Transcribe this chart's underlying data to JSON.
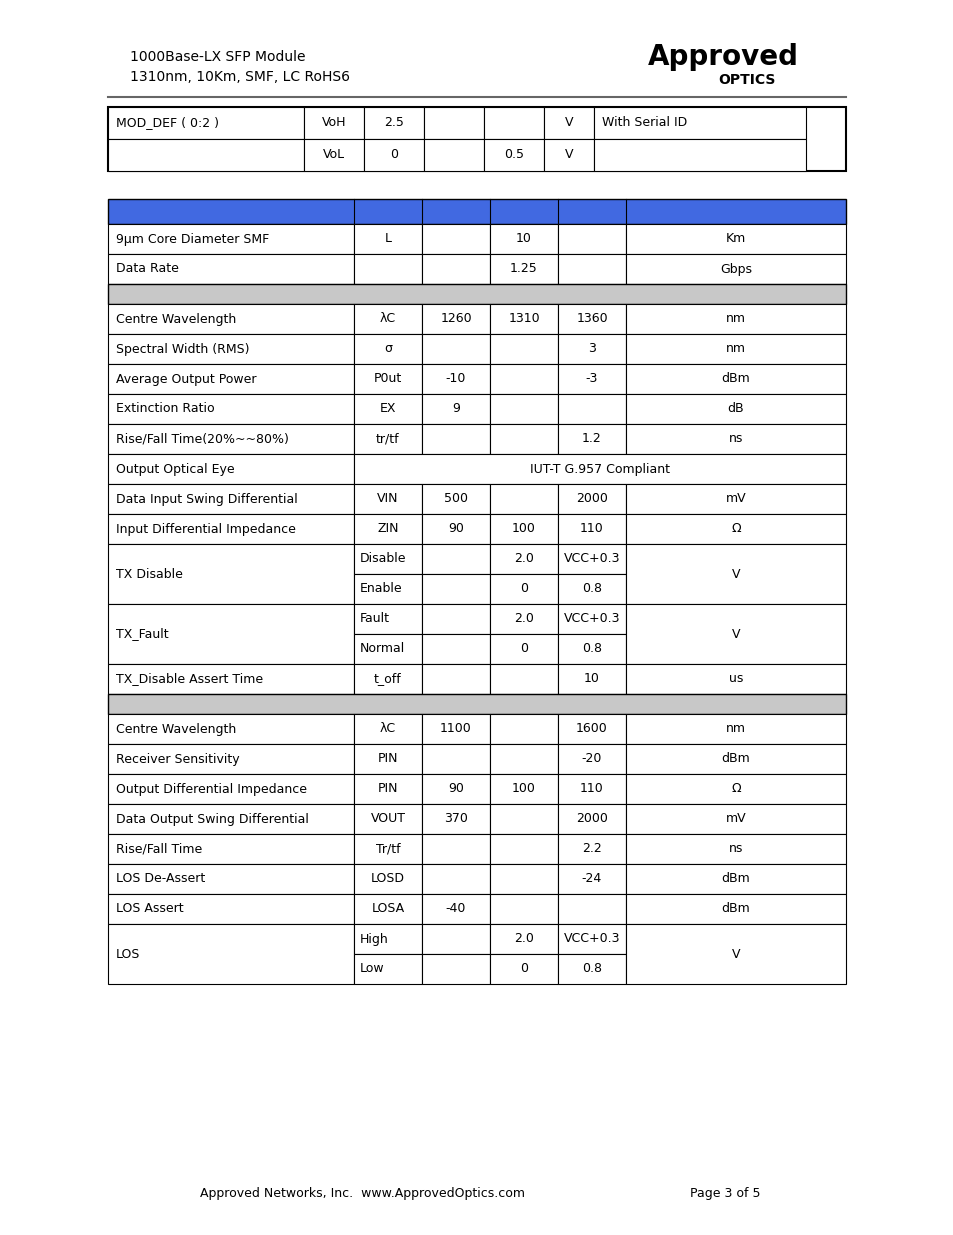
{
  "title_line1": "1000Base-LX SFP Module",
  "title_line2": "1310nm, 10Km, SMF, LC RoHS6",
  "footer": "Approved Networks, Inc.  www.ApprovedOptics.com",
  "footer_page": "Page 3 of 5",
  "blue_color": "#4169E1",
  "gray_color": "#C8C8C8",
  "bg_color": "#FFFFFF",
  "top_rows": [
    [
      "MOD_DEF ( 0:2 )",
      "VoH",
      "2.5",
      "",
      "",
      "V",
      "With Serial ID"
    ],
    [
      "",
      "VoL",
      "0",
      "",
      "0.5",
      "V",
      ""
    ]
  ],
  "section1_rows": [
    {
      "type": "data",
      "cells": [
        "9μm Core Diameter SMF",
        "L",
        "",
        "10",
        "",
        "Km"
      ]
    },
    {
      "type": "data",
      "cells": [
        "Data Rate",
        "",
        "",
        "1.25",
        "",
        "Gbps"
      ]
    }
  ],
  "section2_rows": [
    {
      "type": "data",
      "cells": [
        "Centre Wavelength",
        "λC",
        "1260",
        "1310",
        "1360",
        "nm"
      ]
    },
    {
      "type": "data",
      "cells": [
        "Spectral Width (RMS)",
        "σ",
        "",
        "",
        "3",
        "nm"
      ]
    },
    {
      "type": "data",
      "cells": [
        "Average Output Power",
        "P0ut",
        "-10",
        "",
        "-3",
        "dBm"
      ]
    },
    {
      "type": "data",
      "cells": [
        "Extinction Ratio",
        "EX",
        "9",
        "",
        "",
        "dB"
      ]
    },
    {
      "type": "data",
      "cells": [
        "Rise/Fall Time(20%~~80%)",
        "tr/tf",
        "",
        "",
        "1.2",
        "ns"
      ]
    },
    {
      "type": "span",
      "cells": [
        "Output Optical Eye",
        "IUT-T G.957 Compliant"
      ]
    },
    {
      "type": "data",
      "cells": [
        "Data Input Swing Differential",
        "VIN",
        "500",
        "",
        "2000",
        "mV"
      ]
    },
    {
      "type": "data",
      "cells": [
        "Input Differential Impedance",
        "ZIN",
        "90",
        "100",
        "110",
        "Ω"
      ]
    },
    {
      "type": "split2",
      "label": "TX Disable",
      "sub1": "Disable",
      "sub2": "Enable",
      "v1min": "2.0",
      "v1max": "VCC+0.3",
      "v2min": "0",
      "v2max": "0.8",
      "unit": "V"
    },
    {
      "type": "split2",
      "label": "TX_Fault",
      "sub1": "Fault",
      "sub2": "Normal",
      "v1min": "2.0",
      "v1max": "VCC+0.3",
      "v2min": "0",
      "v2max": "0.8",
      "unit": "V"
    },
    {
      "type": "data",
      "cells": [
        "TX_Disable Assert Time",
        "t_off",
        "",
        "",
        "10",
        "us"
      ]
    }
  ],
  "section3_rows": [
    {
      "type": "data",
      "cells": [
        "Centre Wavelength",
        "λC",
        "1100",
        "",
        "1600",
        "nm"
      ]
    },
    {
      "type": "data",
      "cells": [
        "Receiver Sensitivity",
        "PIN",
        "",
        "",
        "-20",
        "dBm"
      ]
    },
    {
      "type": "data",
      "cells": [
        "Output Differential Impedance",
        "PIN",
        "90",
        "100",
        "110",
        "Ω"
      ]
    },
    {
      "type": "data",
      "cells": [
        "Data Output Swing Differential",
        "VOUT",
        "370",
        "",
        "2000",
        "mV"
      ]
    },
    {
      "type": "data",
      "cells": [
        "Rise/Fall Time",
        "Tr/tf",
        "",
        "",
        "2.2",
        "ns"
      ]
    },
    {
      "type": "data",
      "cells": [
        "LOS De-Assert",
        "LOSD",
        "",
        "",
        "-24",
        "dBm"
      ]
    },
    {
      "type": "data",
      "cells": [
        "LOS Assert",
        "LOSA",
        "-40",
        "",
        "",
        "dBm"
      ]
    },
    {
      "type": "split2",
      "label": "LOS",
      "sub1": "High",
      "sub2": "Low",
      "v1min": "2.0",
      "v1max": "VCC+0.3",
      "v2min": "0",
      "v2max": "0.8",
      "unit": "V"
    }
  ]
}
